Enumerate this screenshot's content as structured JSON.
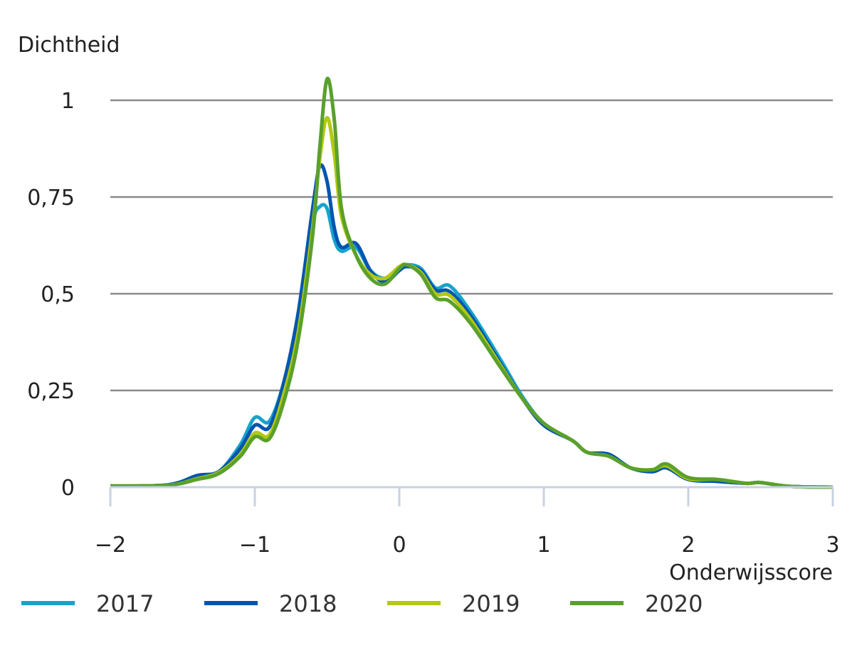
{
  "chart_data": {
    "type": "line",
    "title": "",
    "xlabel": "Onderwijsscore",
    "ylabel": "Dichtheid",
    "xlim": [
      -2,
      3
    ],
    "ylim": [
      0,
      1
    ],
    "grid": "horizontal",
    "legend_position": "bottom",
    "x_ticks": [
      {
        "value": -2,
        "label": "−2"
      },
      {
        "value": -1,
        "label": "−1"
      },
      {
        "value": 0,
        "label": "0"
      },
      {
        "value": 1,
        "label": "1"
      },
      {
        "value": 2,
        "label": "2"
      },
      {
        "value": 3,
        "label": "3"
      }
    ],
    "y_ticks": [
      {
        "value": 0,
        "label": "0"
      },
      {
        "value": 0.25,
        "label": "0,25"
      },
      {
        "value": 0.5,
        "label": "0,5"
      },
      {
        "value": 0.75,
        "label": "0,75"
      },
      {
        "value": 1,
        "label": "1"
      }
    ],
    "x": [
      -2,
      -1.6,
      -1.4,
      -1.25,
      -1.1,
      -1,
      -0.9,
      -0.8,
      -0.7,
      -0.6,
      -0.55,
      -0.5,
      -0.45,
      -0.4,
      -0.3,
      -0.2,
      -0.1,
      0,
      0.05,
      0.15,
      0.25,
      0.35,
      0.5,
      0.7,
      0.85,
      1,
      1.2,
      1.3,
      1.45,
      1.6,
      1.75,
      1.85,
      2,
      2.2,
      2.4,
      2.5,
      2.7,
      3
    ],
    "series": [
      {
        "name": "2017",
        "color": "#17a3cc",
        "values": [
          0.003,
          0.006,
          0.03,
          0.04,
          0.11,
          0.18,
          0.17,
          0.27,
          0.44,
          0.68,
          0.725,
          0.72,
          0.64,
          0.61,
          0.62,
          0.56,
          0.54,
          0.565,
          0.575,
          0.565,
          0.515,
          0.52,
          0.45,
          0.33,
          0.235,
          0.165,
          0.12,
          0.09,
          0.085,
          0.05,
          0.04,
          0.05,
          0.02,
          0.015,
          0.01,
          0.012,
          0.002,
          0
        ]
      },
      {
        "name": "2018",
        "color": "#0055b0",
        "values": [
          0.003,
          0.006,
          0.03,
          0.04,
          0.1,
          0.16,
          0.155,
          0.27,
          0.45,
          0.72,
          0.83,
          0.79,
          0.67,
          0.62,
          0.63,
          0.56,
          0.53,
          0.56,
          0.57,
          0.56,
          0.51,
          0.505,
          0.44,
          0.32,
          0.23,
          0.16,
          0.12,
          0.09,
          0.085,
          0.05,
          0.04,
          0.05,
          0.02,
          0.015,
          0.01,
          0.012,
          0.002,
          0
        ]
      },
      {
        "name": "2019",
        "color": "#b2c812",
        "values": [
          0.003,
          0.005,
          0.022,
          0.038,
          0.085,
          0.14,
          0.135,
          0.24,
          0.4,
          0.67,
          0.85,
          0.955,
          0.86,
          0.7,
          0.6,
          0.55,
          0.54,
          0.57,
          0.575,
          0.555,
          0.5,
          0.495,
          0.43,
          0.315,
          0.23,
          0.165,
          0.12,
          0.09,
          0.08,
          0.05,
          0.045,
          0.055,
          0.022,
          0.02,
          0.01,
          0.012,
          0.002,
          0
        ]
      },
      {
        "name": "2020",
        "color": "#5aa02c",
        "values": [
          0.003,
          0.005,
          0.02,
          0.035,
          0.08,
          0.13,
          0.125,
          0.22,
          0.38,
          0.65,
          0.88,
          1.055,
          0.95,
          0.72,
          0.6,
          0.54,
          0.525,
          0.565,
          0.575,
          0.55,
          0.49,
          0.48,
          0.42,
          0.31,
          0.23,
          0.165,
          0.12,
          0.09,
          0.08,
          0.05,
          0.045,
          0.06,
          0.025,
          0.02,
          0.01,
          0.012,
          0.002,
          0
        ]
      }
    ]
  }
}
